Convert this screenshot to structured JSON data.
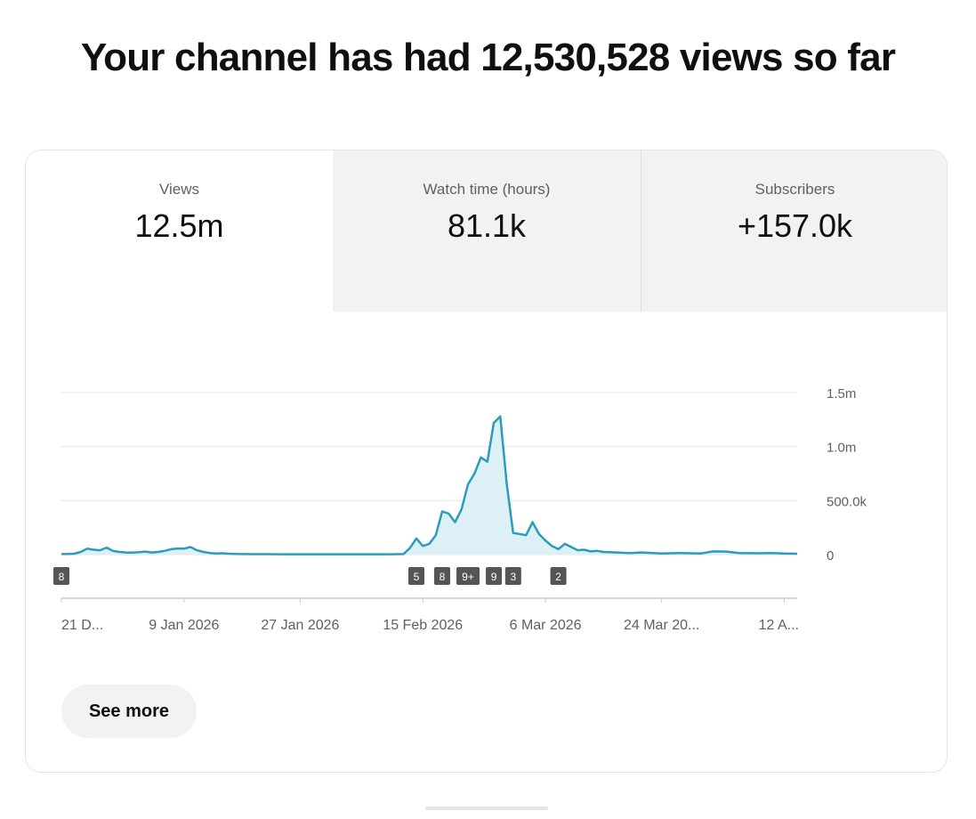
{
  "headline": "Your channel has had 12,530,528 views so far",
  "tabs": [
    {
      "label": "Views",
      "value": "12.5m",
      "selected": true
    },
    {
      "label": "Watch time (hours)",
      "value": "81.1k",
      "selected": false
    },
    {
      "label": "Subscribers",
      "value": "+157.0k",
      "selected": false
    }
  ],
  "see_more_label": "See more",
  "chart_data": {
    "type": "area",
    "xlabel": "",
    "ylabel": "",
    "y_tick_labels": [
      "1.5m",
      "1.0m",
      "500.0k",
      "0"
    ],
    "y_ticks": [
      1500000,
      1000000,
      500000,
      0
    ],
    "ylim": [
      0,
      1500000
    ],
    "x_tick_labels": [
      "21 D...",
      "9 Jan 2026",
      "27 Jan 2026",
      "15 Feb 2026",
      "6 Mar 2026",
      "24 Mar 20...",
      "12 A..."
    ],
    "x_tick_dates": [
      "2025-12-21",
      "2026-01-09",
      "2026-01-27",
      "2026-02-15",
      "2026-03-06",
      "2026-03-24",
      "2026-04-12"
    ],
    "grid": true,
    "line_color": "#2a9dbd",
    "fill_color": "#ddf0f6",
    "series": [
      {
        "points": [
          [
            "2025-12-21",
            5000
          ],
          [
            "2025-12-22",
            6000
          ],
          [
            "2025-12-23",
            8000
          ],
          [
            "2025-12-24",
            25000
          ],
          [
            "2025-12-25",
            55000
          ],
          [
            "2025-12-26",
            45000
          ],
          [
            "2025-12-27",
            40000
          ],
          [
            "2025-12-28",
            65000
          ],
          [
            "2025-12-29",
            35000
          ],
          [
            "2025-12-30",
            25000
          ],
          [
            "2025-12-31",
            20000
          ],
          [
            "2026-01-01",
            18000
          ],
          [
            "2026-01-02",
            22000
          ],
          [
            "2026-01-03",
            28000
          ],
          [
            "2026-01-04",
            20000
          ],
          [
            "2026-01-05",
            25000
          ],
          [
            "2026-01-06",
            35000
          ],
          [
            "2026-01-07",
            50000
          ],
          [
            "2026-01-08",
            55000
          ],
          [
            "2026-01-09",
            55000
          ],
          [
            "2026-01-10",
            70000
          ],
          [
            "2026-01-11",
            40000
          ],
          [
            "2026-01-12",
            25000
          ],
          [
            "2026-01-13",
            15000
          ],
          [
            "2026-01-14",
            10000
          ],
          [
            "2026-01-15",
            12000
          ],
          [
            "2026-01-16",
            8000
          ],
          [
            "2026-01-17",
            6000
          ],
          [
            "2026-01-18",
            5000
          ],
          [
            "2026-01-20",
            4000
          ],
          [
            "2026-01-22",
            4000
          ],
          [
            "2026-01-24",
            3000
          ],
          [
            "2026-01-27",
            3000
          ],
          [
            "2026-01-30",
            3000
          ],
          [
            "2026-02-03",
            3000
          ],
          [
            "2026-02-07",
            3000
          ],
          [
            "2026-02-10",
            3000
          ],
          [
            "2026-02-12",
            5000
          ],
          [
            "2026-02-13",
            60000
          ],
          [
            "2026-02-14",
            150000
          ],
          [
            "2026-02-15",
            80000
          ],
          [
            "2026-02-16",
            100000
          ],
          [
            "2026-02-17",
            180000
          ],
          [
            "2026-02-18",
            400000
          ],
          [
            "2026-02-19",
            380000
          ],
          [
            "2026-02-20",
            300000
          ],
          [
            "2026-02-21",
            420000
          ],
          [
            "2026-02-22",
            650000
          ],
          [
            "2026-02-23",
            750000
          ],
          [
            "2026-02-24",
            900000
          ],
          [
            "2026-02-25",
            860000
          ],
          [
            "2026-02-26",
            1220000
          ],
          [
            "2026-02-27",
            1280000
          ],
          [
            "2026-02-28",
            650000
          ],
          [
            "2026-03-01",
            200000
          ],
          [
            "2026-03-02",
            190000
          ],
          [
            "2026-03-03",
            180000
          ],
          [
            "2026-03-04",
            300000
          ],
          [
            "2026-03-05",
            190000
          ],
          [
            "2026-03-06",
            130000
          ],
          [
            "2026-03-07",
            80000
          ],
          [
            "2026-03-08",
            50000
          ],
          [
            "2026-03-09",
            100000
          ],
          [
            "2026-03-10",
            70000
          ],
          [
            "2026-03-11",
            40000
          ],
          [
            "2026-03-12",
            45000
          ],
          [
            "2026-03-13",
            30000
          ],
          [
            "2026-03-14",
            35000
          ],
          [
            "2026-03-15",
            25000
          ],
          [
            "2026-03-17",
            20000
          ],
          [
            "2026-03-19",
            15000
          ],
          [
            "2026-03-21",
            20000
          ],
          [
            "2026-03-24",
            10000
          ],
          [
            "2026-03-27",
            15000
          ],
          [
            "2026-03-30",
            10000
          ],
          [
            "2026-04-01",
            30000
          ],
          [
            "2026-04-03",
            28000
          ],
          [
            "2026-04-05",
            15000
          ],
          [
            "2026-04-08",
            12000
          ],
          [
            "2026-04-10",
            15000
          ],
          [
            "2026-04-12",
            10000
          ],
          [
            "2026-04-14",
            8000
          ]
        ]
      }
    ],
    "markers": [
      {
        "label": "8",
        "date": "2025-12-21"
      },
      {
        "label": "5",
        "date": "2026-02-14"
      },
      {
        "label": "8",
        "date": "2026-02-18"
      },
      {
        "label": "9+",
        "date": "2026-02-22"
      },
      {
        "label": "9",
        "date": "2026-02-26"
      },
      {
        "label": "3",
        "date": "2026-03-01"
      },
      {
        "label": "2",
        "date": "2026-03-08"
      }
    ]
  }
}
